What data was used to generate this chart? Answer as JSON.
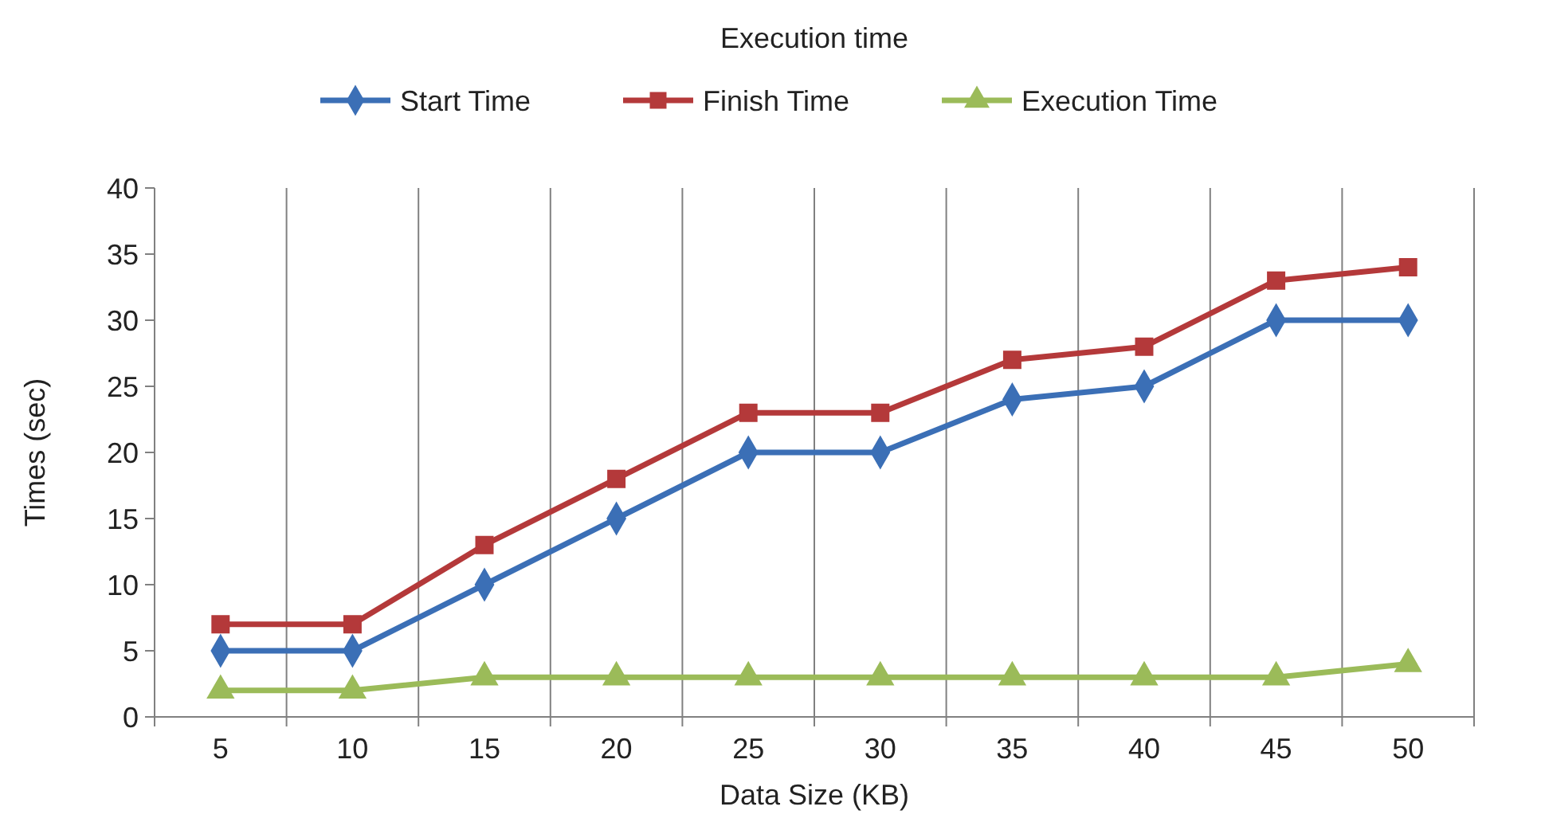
{
  "chart_data": {
    "type": "line",
    "title": "Execution time",
    "xlabel": "Data Size (KB)",
    "ylabel": "Times (sec)",
    "categories": [
      "5",
      "10",
      "15",
      "20",
      "25",
      "30",
      "35",
      "40",
      "45",
      "50"
    ],
    "series": [
      {
        "name": "Start Time",
        "color": "#3b6fb6",
        "marker": "diamond",
        "values": [
          5,
          5,
          10,
          15,
          20,
          20,
          24,
          25,
          30,
          30
        ]
      },
      {
        "name": "Finish Time",
        "color": "#b4393a",
        "marker": "square",
        "values": [
          7,
          7,
          13,
          18,
          23,
          23,
          27,
          28,
          33,
          34
        ]
      },
      {
        "name": "Execution Time",
        "color": "#9bbb59",
        "marker": "triangle",
        "values": [
          2,
          2,
          3,
          3,
          3,
          3,
          3,
          3,
          3,
          4
        ]
      }
    ],
    "ylim": [
      0,
      40
    ],
    "yticks": [
      0,
      5,
      10,
      15,
      20,
      25,
      30,
      35,
      40
    ],
    "grid": "x",
    "legend": "top",
    "line_style": "solid"
  }
}
